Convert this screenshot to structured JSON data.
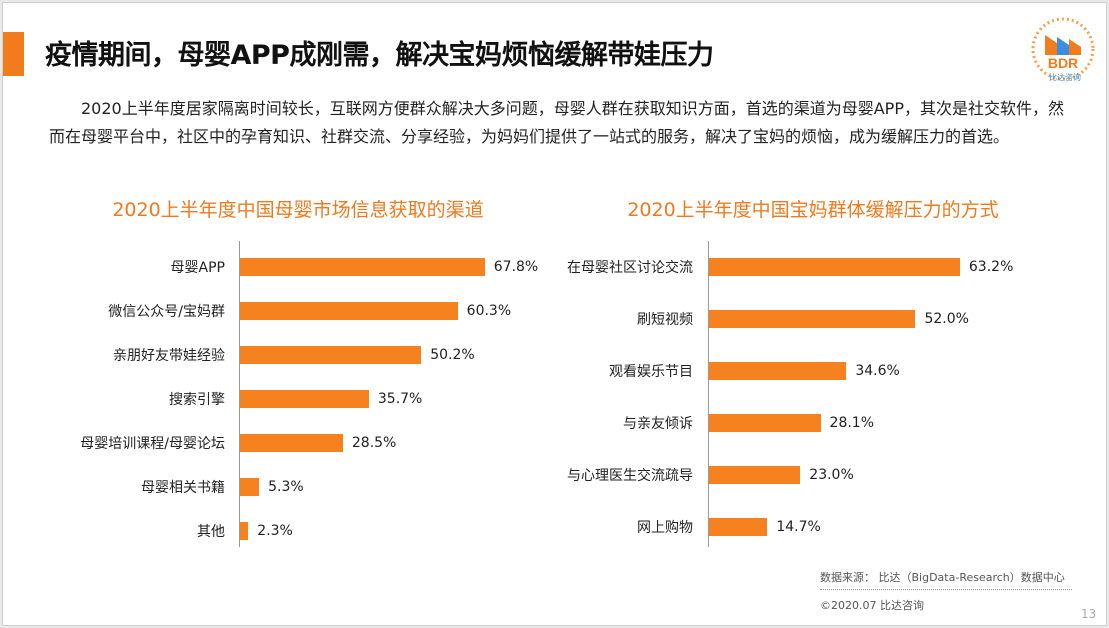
{
  "title": "疫情期间，母婴APP成刚需，解决宝妈烦恼缓解带娃压力",
  "paragraph": "2020上半年度居家隔离时间较长，互联网方便群众解决大多问题，母婴人群在获取知识方面，首选的渠道为母婴APP，其次是社交软件，然而在母婴平台中，社区中的孕育知识、社群交流、分享经验，为妈妈们提供了一站式的服务，解决了宝妈的烦恼，成为缓解压力的首选。",
  "logo": {
    "text": "BDR",
    "subtext": "比达咨询"
  },
  "colors": {
    "accent": "#f07c1c",
    "bar": "#f5821f"
  },
  "chart_data": [
    {
      "type": "bar",
      "orientation": "horizontal",
      "title": "2020上半年度中国母婴市场信息获取的渠道",
      "categories": [
        "母婴APP",
        "微信公众号/宝妈群",
        "亲朋好友带娃经验",
        "搜索引擎",
        "母婴培训课程/母婴论坛",
        "母婴相关书籍",
        "其他"
      ],
      "values": [
        67.8,
        60.3,
        50.2,
        35.7,
        28.5,
        5.3,
        2.3
      ],
      "labels": [
        "67.8%",
        "60.3%",
        "50.2%",
        "35.7%",
        "28.5%",
        "5.3%",
        "2.3%"
      ],
      "unit": "%"
    },
    {
      "type": "bar",
      "orientation": "horizontal",
      "title": "2020上半年度中国宝妈群体缓解压力的方式",
      "categories": [
        "在母婴社区讨论交流",
        "刷短视频",
        "观看娱乐节目",
        "与亲友倾诉",
        "与心理医生交流疏导",
        "网上购物"
      ],
      "values": [
        63.2,
        52.0,
        34.6,
        28.1,
        23.0,
        14.7
      ],
      "labels": [
        "63.2%",
        "52.0%",
        "34.6%",
        "28.1%",
        "23.0%",
        "14.7%"
      ],
      "unit": "%"
    }
  ],
  "footer": {
    "source": "数据来源： 比达（BigData-Research）数据中心",
    "copyright": "©2020.07  比达咨询",
    "page_number": "13"
  }
}
